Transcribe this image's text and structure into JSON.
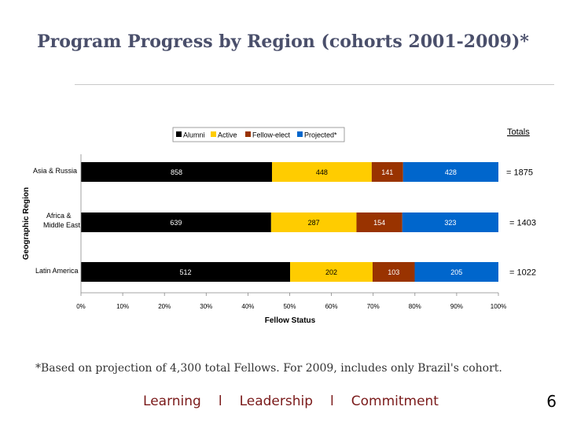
{
  "title": "Program Progress by Region (cohorts 2001-2009)*",
  "footnote": "*Based on projection of 4,300 total Fellows.  For 2009, includes only Brazil's cohort.",
  "tagline": {
    "word1": "Learning",
    "sep1": "l",
    "word2": "Leadership",
    "sep2": "l",
    "word3": "Commitment"
  },
  "page_number": "6",
  "totals_label": "Totals",
  "chart_data": {
    "type": "bar",
    "orientation": "horizontal",
    "stacked": "percent",
    "title": "",
    "xlabel": "Fellow Status",
    "ylabel": "Geographic Region",
    "xlim": [
      0,
      100
    ],
    "x_ticks": [
      "0%",
      "10%",
      "20%",
      "30%",
      "40%",
      "50%",
      "60%",
      "70%",
      "80%",
      "90%",
      "100%"
    ],
    "legend_position": "top",
    "categories": [
      "Asia & Russia",
      "Africa & Middle East",
      "Latin America"
    ],
    "series": [
      {
        "name": "Alumni",
        "color": "#000000",
        "label_color": "#ffffff",
        "values": [
          858,
          639,
          512
        ]
      },
      {
        "name": "Active",
        "color": "#ffcc00",
        "label_color": "#000000",
        "values": [
          448,
          287,
          202
        ]
      },
      {
        "name": "Fellow-elect",
        "color": "#993300",
        "label_color": "#ffffff",
        "values": [
          141,
          154,
          103
        ]
      },
      {
        "name": "Projected*",
        "color": "#0066cc",
        "label_color": "#ffffff",
        "values": [
          428,
          323,
          205
        ]
      }
    ],
    "totals": [
      "= 1875",
      "= 1403",
      "= 1022"
    ]
  }
}
